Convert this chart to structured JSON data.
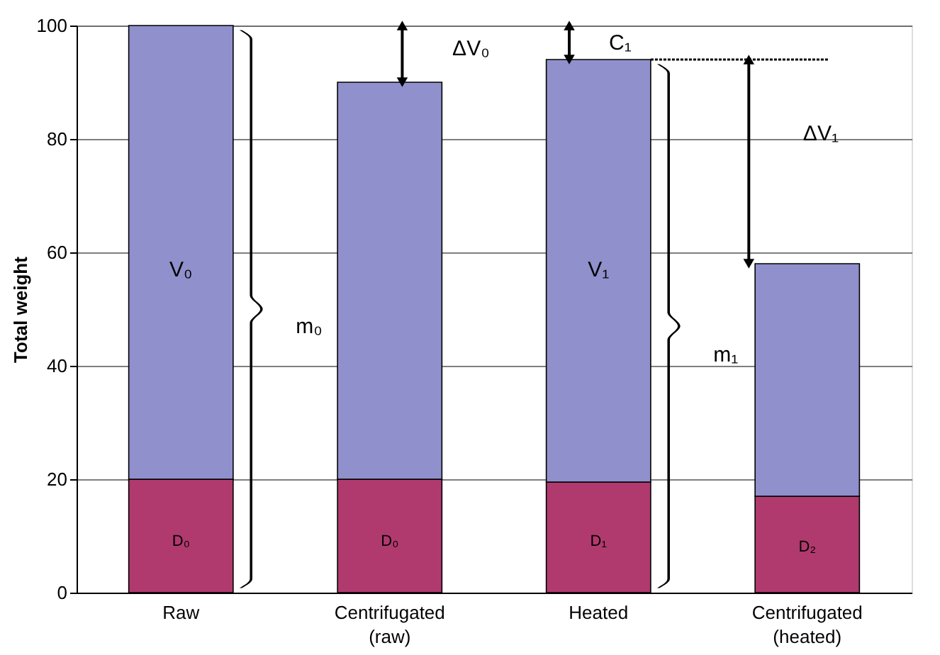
{
  "chart_data": {
    "type": "bar",
    "stacked": true,
    "ylabel": "Total weight",
    "categories": [
      "Raw",
      "Centrifugated (raw)",
      "Heated",
      "Centrifugated (heated)"
    ],
    "series": [
      {
        "color": "#b03a6e",
        "values": [
          20,
          20,
          19.5,
          17
        ]
      },
      {
        "color": "#9090cc",
        "values": [
          80,
          70,
          74.5,
          41
        ]
      }
    ],
    "ylim": [
      0,
      100
    ],
    "yticks": [
      0,
      20,
      40,
      60,
      80,
      100
    ],
    "grid": "y",
    "annotations": [
      "V₀",
      "m₀",
      "D₀",
      "ΔV₀",
      "D₀",
      "C₁",
      "V₁",
      "m₁",
      "D₁",
      "ΔV₁",
      "D₂"
    ]
  }
}
